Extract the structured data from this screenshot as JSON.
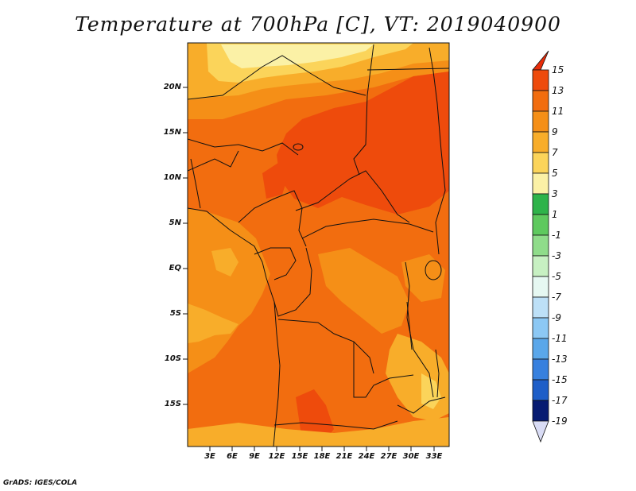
{
  "title": "Temperature at 700hPa [C], VT: 2019040900",
  "credit": "GrADS: IGES/COLA",
  "map": {
    "lon_range": [
      0,
      35
    ],
    "lat_range": [
      -22,
      24
    ],
    "lat_ticks": [
      {
        "lat": 20,
        "label": "20N"
      },
      {
        "lat": 15,
        "label": "15N"
      },
      {
        "lat": 10,
        "label": "10N"
      },
      {
        "lat": 5,
        "label": "5N"
      },
      {
        "lat": 0,
        "label": "EQ"
      },
      {
        "lat": -5,
        "label": "5S"
      },
      {
        "lat": -10,
        "label": "10S"
      },
      {
        "lat": -15,
        "label": "15S"
      }
    ],
    "lon_ticks": [
      {
        "lon": 3,
        "label": "3E"
      },
      {
        "lon": 6,
        "label": "6E"
      },
      {
        "lon": 9,
        "label": "9E"
      },
      {
        "lon": 12,
        "label": "12E"
      },
      {
        "lon": 15,
        "label": "15E"
      },
      {
        "lon": 18,
        "label": "18E"
      },
      {
        "lon": 21,
        "label": "21E"
      },
      {
        "lon": 24,
        "label": "24E"
      },
      {
        "lon": 27,
        "label": "27E"
      },
      {
        "lon": 30,
        "label": "30E"
      },
      {
        "lon": 33,
        "label": "33E"
      }
    ]
  },
  "colorbar": {
    "labels": [
      "15",
      "13",
      "11",
      "9",
      "7",
      "5",
      "3",
      "1",
      "-1",
      "-3",
      "-5",
      "-7",
      "-9",
      "-11",
      "-13",
      "-15",
      "-17",
      "-19"
    ],
    "colors": [
      "#e82d0a",
      "#ee4b0c",
      "#f26d0f",
      "#f58f17",
      "#f8ad2a",
      "#fbd45a",
      "#fbf1a6",
      "#2eb34a",
      "#5ec95e",
      "#8fdc8a",
      "#c7f0c2",
      "#e6f8f2",
      "#bde0f7",
      "#8cc8f4",
      "#5aa7ea",
      "#3780de",
      "#1e5ec8",
      "#1039a8",
      "#071b72",
      "#d9dcf5"
    ]
  }
}
